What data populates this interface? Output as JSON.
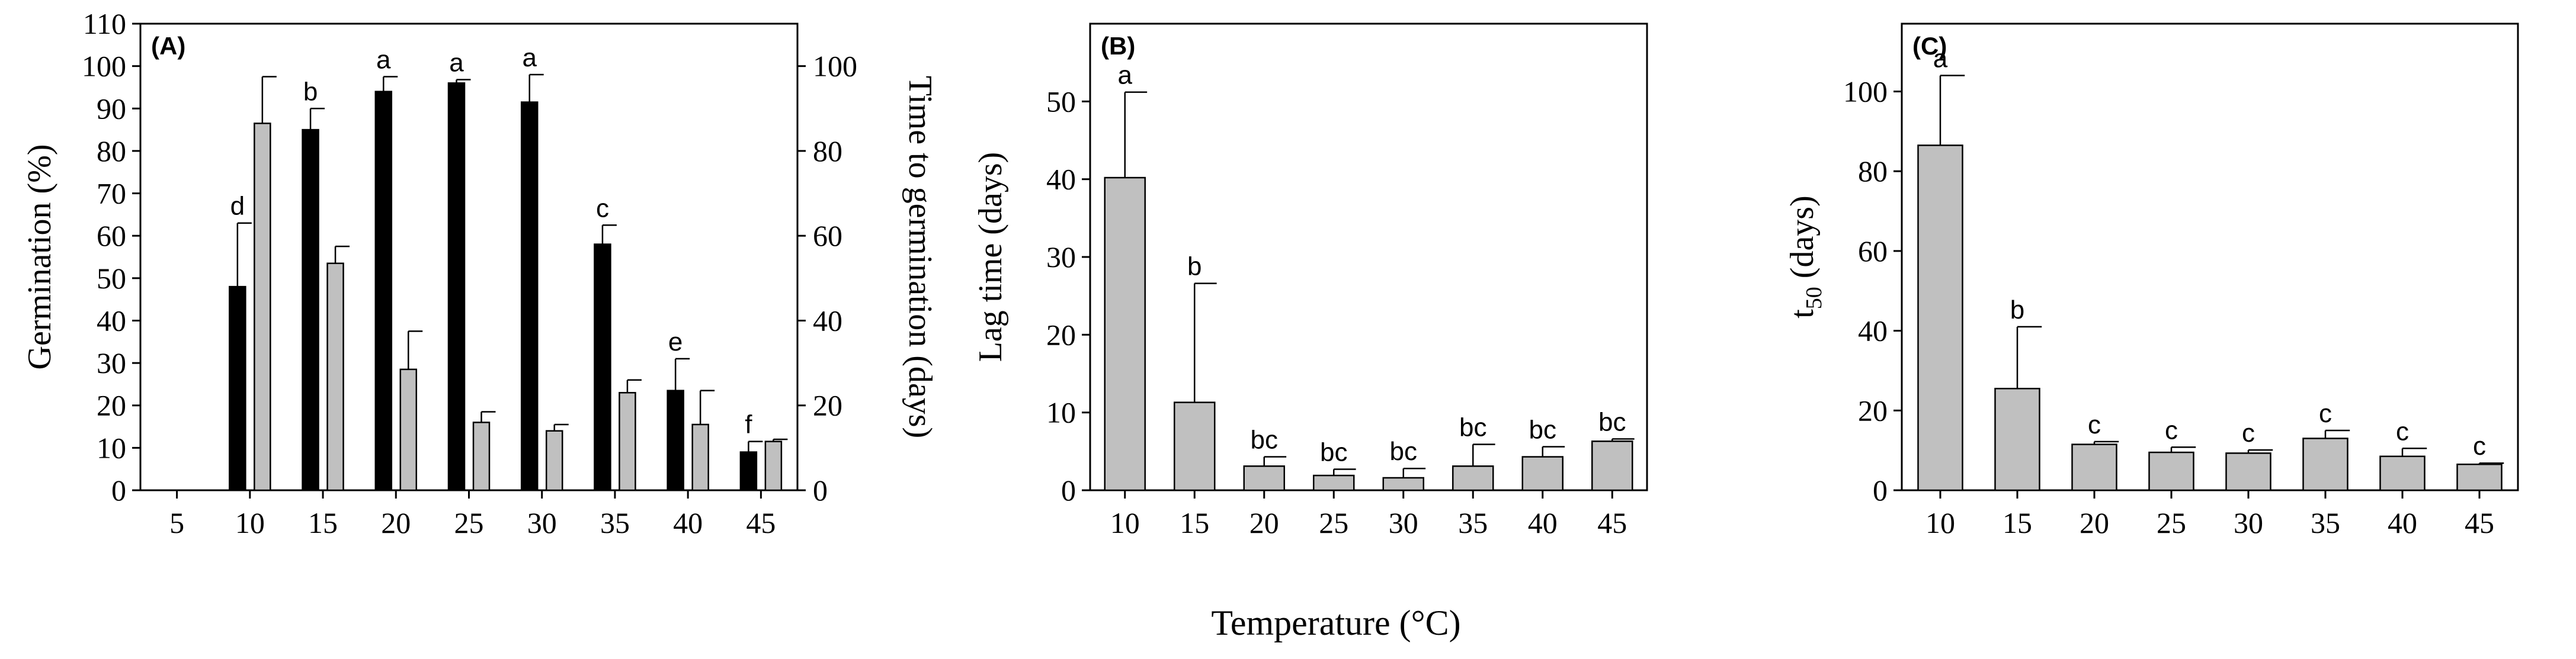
{
  "figure": {
    "xlabel": "Temperature (°C)"
  },
  "chart_data": [
    {
      "panel": "(A)",
      "type": "bar",
      "categories": [
        "5",
        "10",
        "15",
        "20",
        "25",
        "30",
        "35",
        "40",
        "45"
      ],
      "ylabel": "Germination (%)",
      "ylabel_right": "Time to germination (days)",
      "ylim": [
        0,
        110
      ],
      "yticks": [
        0,
        10,
        20,
        30,
        40,
        50,
        60,
        70,
        80,
        90,
        100,
        110
      ],
      "ylim_right": [
        0,
        110
      ],
      "yticks_right": [
        0,
        20,
        40,
        60,
        80,
        100
      ],
      "grid": false,
      "series": [
        {
          "axis": "left",
          "color": "#000000",
          "values": [
            0,
            48,
            85,
            94,
            96,
            91.5,
            58,
            23.5,
            9
          ],
          "errors": [
            0,
            15,
            5,
            3.5,
            0.8,
            6.5,
            4.5,
            7.5,
            2.5
          ],
          "letters": [
            "",
            "d",
            "b",
            "a",
            "a",
            "a",
            "c",
            "e",
            "f"
          ]
        },
        {
          "axis": "right",
          "color": "#c0c0c0",
          "values": [
            0,
            86.5,
            53.5,
            28.5,
            16,
            14,
            23,
            15.5,
            11.5
          ],
          "errors": [
            0,
            11,
            4,
            9,
            2.5,
            1.5,
            3,
            8,
            0.5
          ],
          "letters": [
            "",
            "",
            "",
            "",
            "",
            "",
            "",
            "",
            ""
          ]
        }
      ]
    },
    {
      "panel": "(B)",
      "type": "bar",
      "categories": [
        "10",
        "15",
        "20",
        "25",
        "30",
        "35",
        "40",
        "45"
      ],
      "ylabel": "Lag time (days)",
      "ylim": [
        0,
        60
      ],
      "yticks": [
        0,
        10,
        20,
        30,
        40,
        50
      ],
      "grid": false,
      "series": [
        {
          "color": "#c0c0c0",
          "values": [
            40.2,
            11.3,
            3.1,
            1.9,
            1.6,
            3.1,
            4.3,
            6.3
          ],
          "errors": [
            11,
            15.3,
            1.2,
            0.8,
            1.2,
            2.8,
            1.3,
            0.3
          ],
          "letters": [
            "a",
            "b",
            "bc",
            "bc",
            "bc",
            "bc",
            "bc",
            "bc"
          ]
        }
      ]
    },
    {
      "panel": "(C)",
      "type": "bar",
      "categories": [
        "10",
        "15",
        "20",
        "25",
        "30",
        "35",
        "40",
        "45"
      ],
      "ylabel": "t50 (days)",
      "ylabel_main": "t",
      "ylabel_sub": "50",
      "ylabel_tail": " (days)",
      "ylim": [
        0,
        117
      ],
      "yticks": [
        0,
        20,
        40,
        60,
        80,
        100
      ],
      "grid": false,
      "series": [
        {
          "color": "#c0c0c0",
          "values": [
            86.5,
            25.5,
            11.5,
            9.5,
            9.3,
            13,
            8.5,
            6.5
          ],
          "errors": [
            17.5,
            15.5,
            0.7,
            1.3,
            0.8,
            2,
            2,
            0.3
          ],
          "letters": [
            "a",
            "b",
            "c",
            "c",
            "c",
            "c",
            "c",
            "c"
          ]
        }
      ]
    }
  ]
}
